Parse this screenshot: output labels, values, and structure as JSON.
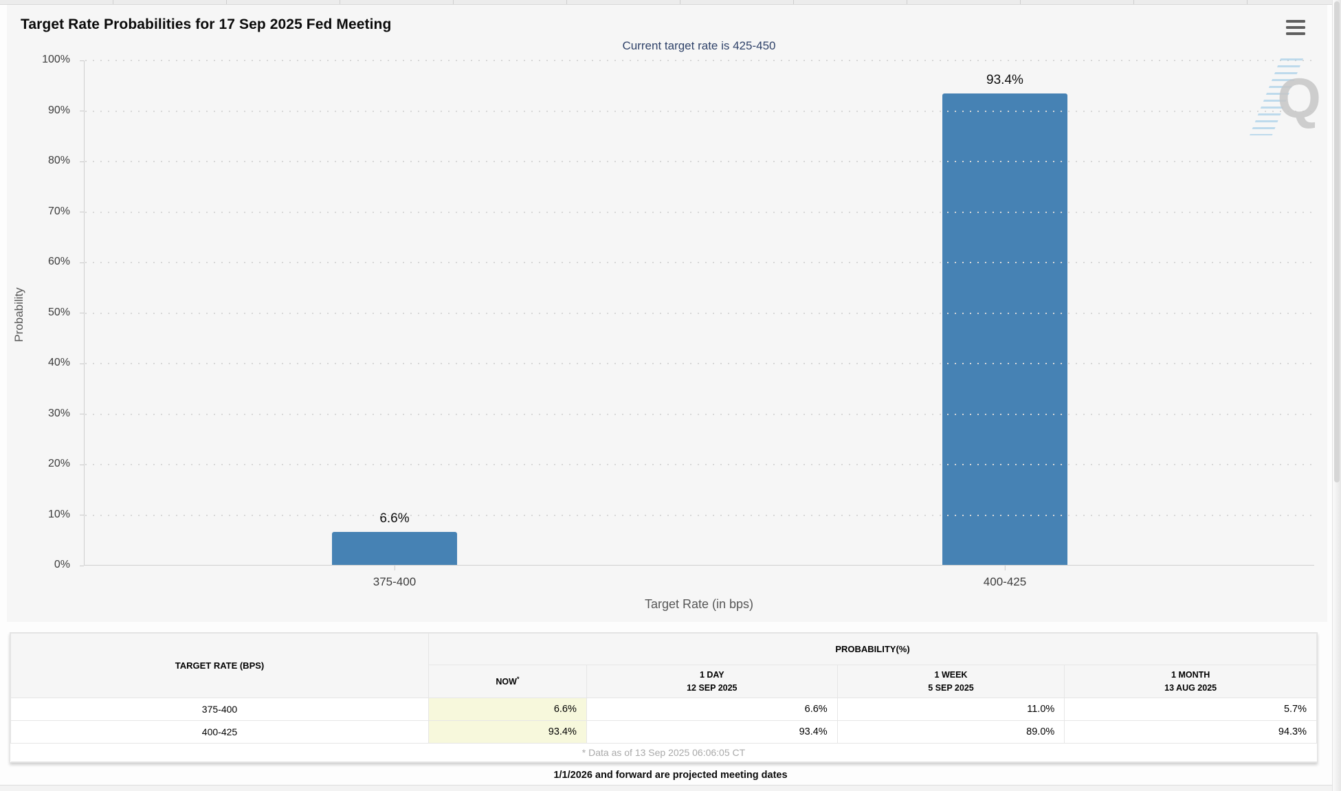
{
  "header": {
    "title": "Target Rate Probabilities for 17 Sep 2025 Fed Meeting"
  },
  "icons": {
    "menu": "hamburger-menu"
  },
  "chart_data": {
    "type": "bar",
    "title": "Target Rate Probabilities for 17 Sep 2025 Fed Meeting",
    "subtitle": "Current target rate is 425-450",
    "categories": [
      "375-400",
      "400-425"
    ],
    "values": [
      6.6,
      93.4
    ],
    "value_labels": [
      "6.6%",
      "93.4%"
    ],
    "xlabel": "Target Rate (in bps)",
    "ylabel": "Probability",
    "ylim": [
      0,
      100
    ],
    "ytick_step": 10,
    "ytick_labels": [
      "0%",
      "10%",
      "20%",
      "30%",
      "40%",
      "50%",
      "60%",
      "70%",
      "80%",
      "90%",
      "100%"
    ],
    "grid": "dotted-horizontal",
    "legend": "none",
    "bar_color": "#4682b4",
    "watermark_letter": "Q"
  },
  "table": {
    "header_left": "TARGET RATE (BPS)",
    "header_group": "PROBABILITY(%)",
    "sub_headers": [
      {
        "line1": "NOW",
        "sup": "*",
        "line2": ""
      },
      {
        "line1": "1 DAY",
        "line2": "12 SEP 2025"
      },
      {
        "line1": "1 WEEK",
        "line2": "5 SEP 2025"
      },
      {
        "line1": "1 MONTH",
        "line2": "13 AUG 2025"
      }
    ],
    "rows": [
      {
        "rate": "375-400",
        "now": "6.6%",
        "one_day": "6.6%",
        "one_week": "11.0%",
        "one_month": "5.7%"
      },
      {
        "rate": "400-425",
        "now": "93.4%",
        "one_day": "93.4%",
        "one_week": "89.0%",
        "one_month": "94.3%"
      }
    ],
    "footnote": "* Data as of 13 Sep 2025 06:06:05 CT"
  },
  "footer": {
    "note": "1/1/2026 and forward are projected meeting dates"
  },
  "colors": {
    "bar": "#4682b4",
    "subtitle_text": "#2f4269",
    "now_highlight": "#f7f8dc",
    "chart_background": "#f6f6f6"
  }
}
